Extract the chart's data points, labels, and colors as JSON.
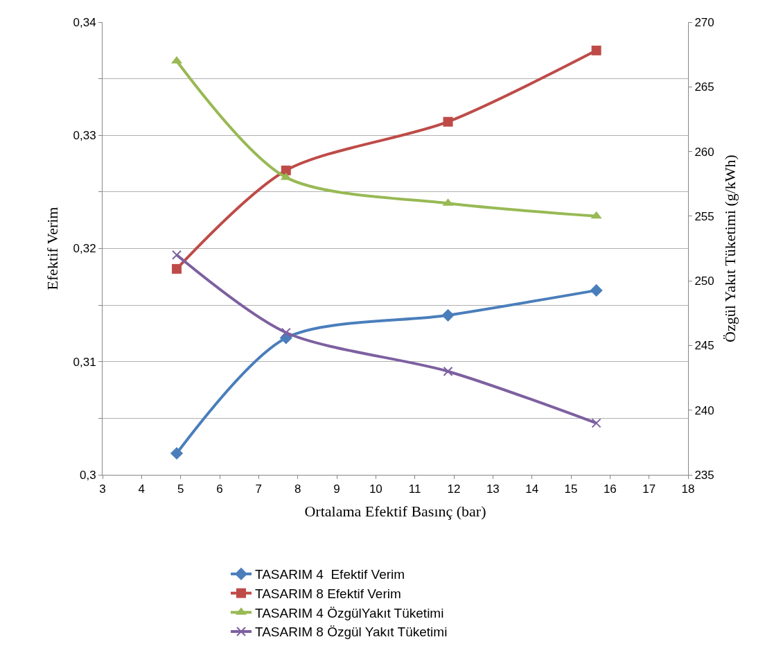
{
  "chart_data": {
    "type": "line",
    "xlabel": "Ortalama Efektif Basınç (bar)",
    "ylabel": "Efektif Verim",
    "y2label": "Özgül Yakıt Tüketimi (g/kWh)",
    "x": [
      4.9,
      7.7,
      11.85,
      15.65
    ],
    "xlim": [
      3,
      18
    ],
    "xticks": [
      3,
      4,
      5,
      6,
      7,
      8,
      9,
      10,
      11,
      12,
      13,
      14,
      15,
      16,
      17,
      18
    ],
    "ylim": [
      0.3,
      0.34
    ],
    "yticks": [
      {
        "value": 0.3,
        "label": "0,3"
      },
      {
        "value": 0.305,
        "label": null
      },
      {
        "value": 0.31,
        "label": "0,31"
      },
      {
        "value": 0.315,
        "label": null
      },
      {
        "value": 0.32,
        "label": "0,32"
      },
      {
        "value": 0.325,
        "label": null
      },
      {
        "value": 0.33,
        "label": "0,33"
      },
      {
        "value": 0.335,
        "label": null
      },
      {
        "value": 0.34,
        "label": "0,34"
      }
    ],
    "y2lim": [
      235,
      270
    ],
    "y2ticks": [
      235,
      240,
      245,
      250,
      255,
      260,
      265,
      270
    ],
    "grid": "y",
    "legend": "bottom",
    "line_style": "solid",
    "series": [
      {
        "name": "TASARIM 4  Efektif Verim",
        "color": "#4a7ebb",
        "marker": "diamond",
        "values": [
          0.3019,
          0.3121,
          0.3141,
          0.3163
        ]
      },
      {
        "name": "TASARIM 8 Efektif Verim",
        "color": "#be4b48",
        "marker": "square",
        "values": [
          0.3182,
          0.3269,
          0.3312,
          0.3375
        ]
      },
      {
        "name": "TASARIM 4 ÖzgülYakıt Tüketimi",
        "color": "#98b954",
        "marker": "triangle",
        "axis": "y2",
        "values": [
          267,
          258,
          256,
          255
        ]
      },
      {
        "name": "TASARIM 8 Özgül Yakıt Tüketimi",
        "color": "#7d60a0",
        "marker": "cross",
        "axis": "y2",
        "values": [
          252,
          246,
          243,
          239
        ]
      }
    ]
  }
}
